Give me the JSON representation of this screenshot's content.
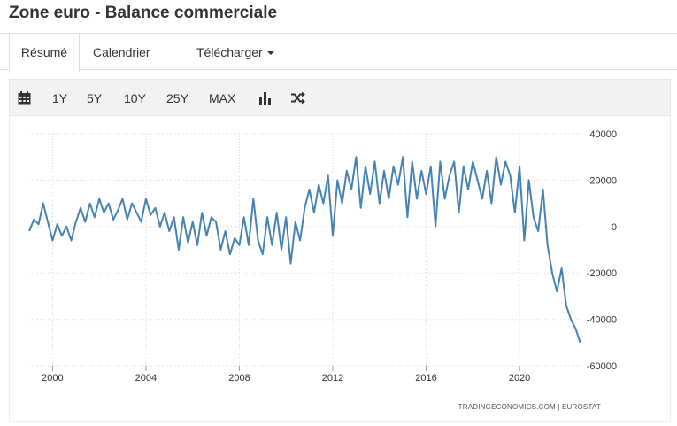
{
  "page": {
    "title": "Zone euro - Balance commerciale"
  },
  "tabs": [
    {
      "label": "Résumé",
      "active": true
    },
    {
      "label": "Calendrier",
      "active": false
    },
    {
      "label": "Télécharger",
      "active": false
    }
  ],
  "toolbar": {
    "ranges": [
      "1Y",
      "5Y",
      "10Y",
      "25Y",
      "MAX"
    ],
    "icons": [
      "calendar-icon",
      "bar-chart-icon",
      "shuffle-icon"
    ]
  },
  "colors": {
    "line": "#4682b4",
    "grid": "#d9d9d9"
  },
  "credit": {
    "source": "TRADINGECONOMICS.COM  |  EUROSTAT"
  },
  "chart_data": {
    "type": "line",
    "title": "",
    "xlabel": "",
    "ylabel": "",
    "y_axis_position": "right",
    "grid": true,
    "legend": "none",
    "xlim": [
      1999.0,
      2022.65
    ],
    "ylim": [
      -60000,
      40000
    ],
    "x_ticks": [
      2000,
      2004,
      2008,
      2012,
      2016,
      2020
    ],
    "y_ticks": [
      40000,
      20000,
      0,
      -20000,
      -40000,
      -60000
    ],
    "y_tick_labels": [
      "40000",
      "20000",
      "0",
      "-20000",
      "-40000",
      "-60000"
    ],
    "series": [
      {
        "x": [
          1999.0,
          1999.2,
          1999.4,
          1999.6,
          1999.8,
          2000.0,
          2000.2,
          2000.4,
          2000.6,
          2000.8,
          2001.0,
          2001.2,
          2001.4,
          2001.6,
          2001.8,
          2002.0,
          2002.2,
          2002.4,
          2002.6,
          2002.8,
          2003.0,
          2003.2,
          2003.4,
          2003.6,
          2003.8,
          2004.0,
          2004.2,
          2004.4,
          2004.6,
          2004.8,
          2005.0,
          2005.2,
          2005.4,
          2005.6,
          2005.8,
          2006.0,
          2006.2,
          2006.4,
          2006.6,
          2006.8,
          2007.0,
          2007.2,
          2007.4,
          2007.6,
          2007.8,
          2008.0,
          2008.2,
          2008.4,
          2008.6,
          2008.8,
          2009.0,
          2009.2,
          2009.4,
          2009.6,
          2009.8,
          2010.0,
          2010.2,
          2010.4,
          2010.6,
          2010.8,
          2011.0,
          2011.2,
          2011.4,
          2011.6,
          2011.8,
          2012.0,
          2012.2,
          2012.4,
          2012.6,
          2012.8,
          2013.0,
          2013.2,
          2013.4,
          2013.6,
          2013.8,
          2014.0,
          2014.2,
          2014.4,
          2014.6,
          2014.8,
          2015.0,
          2015.2,
          2015.4,
          2015.6,
          2015.8,
          2016.0,
          2016.2,
          2016.4,
          2016.6,
          2016.8,
          2017.0,
          2017.2,
          2017.4,
          2017.6,
          2017.8,
          2018.0,
          2018.2,
          2018.4,
          2018.6,
          2018.8,
          2019.0,
          2019.2,
          2019.4,
          2019.6,
          2019.8,
          2020.0,
          2020.2,
          2020.4,
          2020.6,
          2020.8,
          2021.0,
          2021.2,
          2021.4,
          2021.6,
          2021.8,
          2022.0,
          2022.2,
          2022.4,
          2022.6
        ],
        "values": [
          -2000,
          3000,
          1000,
          10000,
          2000,
          -6000,
          1000,
          -4000,
          0,
          -6000,
          2000,
          8000,
          2000,
          10000,
          4000,
          12000,
          6000,
          10000,
          3000,
          7000,
          12000,
          3000,
          10000,
          6000,
          2000,
          12000,
          5000,
          8000,
          0,
          6000,
          -2000,
          4000,
          -10000,
          4000,
          -7000,
          2000,
          -8000,
          6000,
          -4000,
          4000,
          2000,
          -10000,
          -2000,
          -12000,
          -5000,
          -8000,
          4000,
          -8000,
          12000,
          -6000,
          -12000,
          4000,
          -8000,
          6000,
          -10000,
          4000,
          -16000,
          2000,
          -6000,
          8000,
          16000,
          6000,
          18000,
          10000,
          22000,
          -4000,
          20000,
          10000,
          24000,
          16000,
          30000,
          8000,
          26000,
          14000,
          28000,
          10000,
          24000,
          12000,
          26000,
          18000,
          30000,
          4000,
          28000,
          12000,
          24000,
          14000,
          26000,
          0,
          28000,
          12000,
          22000,
          28000,
          6000,
          26000,
          16000,
          28000,
          20000,
          12000,
          24000,
          10000,
          30000,
          18000,
          28000,
          22000,
          6000,
          26000,
          -6000,
          20000,
          4000,
          -2000,
          16000,
          -8000,
          -20000,
          -28000,
          -18000,
          -34000,
          -40000,
          -44000,
          -50000
        ]
      }
    ],
    "source": "TRADINGECONOMICS.COM  |  EUROSTAT"
  }
}
